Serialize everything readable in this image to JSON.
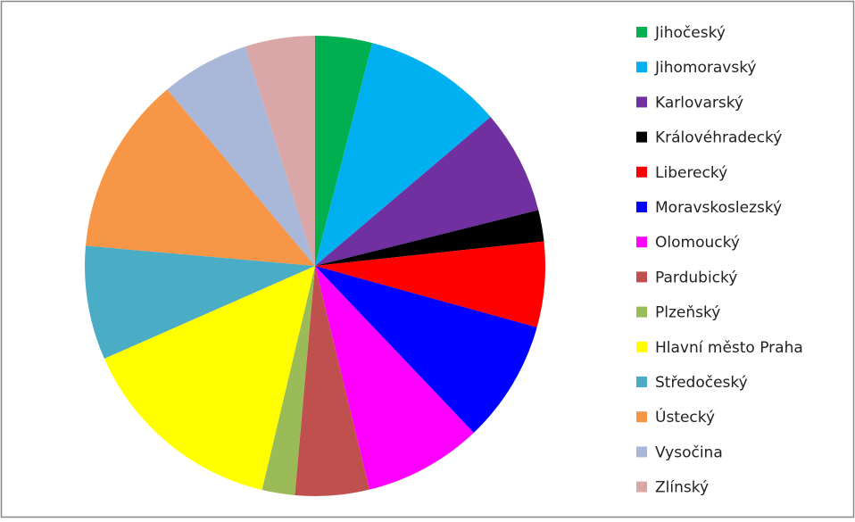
{
  "chart_data": {
    "type": "pie",
    "categories": [
      "Jihočeský",
      "Jihomoravský",
      "Karlovarský",
      "Královéhradecký",
      "Liberecký",
      "Moravskoslezský",
      "Olomoucký",
      "Pardubický",
      "Plzeňský",
      "Hlavní město Praha",
      "Středočeský",
      "Ústecký",
      "Vysočina",
      "Zlínský"
    ],
    "values": [
      4.0,
      9.8,
      7.3,
      2.2,
      6.0,
      8.6,
      8.3,
      5.2,
      2.3,
      14.7,
      8.0,
      12.5,
      6.2,
      4.9
    ],
    "colors": [
      "#00b050",
      "#00b0f0",
      "#7030a0",
      "#000000",
      "#ff0000",
      "#0000ff",
      "#ff00ff",
      "#c0504d",
      "#9bbb59",
      "#ffff00",
      "#4bacc6",
      "#f79646",
      "#a9b8d8",
      "#d9a7a7"
    ],
    "legend": "right"
  }
}
